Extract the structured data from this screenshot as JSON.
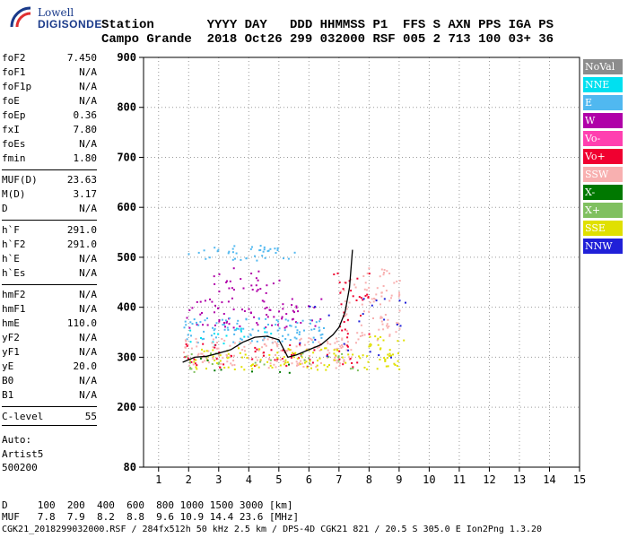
{
  "logo": {
    "line1": "Lowell",
    "line2": "DIGISONDE"
  },
  "header": {
    "row1": "Station       YYYY DAY   DDD HHMMSS P1  FFS S AXN PPS IGA PS",
    "row2": "Campo Grande  2018 Oct26 299 032000 RSF 005 2 713 100 03+ 36"
  },
  "params": [
    {
      "name": "foF2",
      "value": "7.450"
    },
    {
      "name": "foF1",
      "value": "N/A"
    },
    {
      "name": "foF1p",
      "value": "N/A"
    },
    {
      "name": "foE",
      "value": "N/A"
    },
    {
      "name": "foEp",
      "value": "0.36"
    },
    {
      "name": "fxI",
      "value": "7.80"
    },
    {
      "name": "foEs",
      "value": "N/A"
    },
    {
      "name": "fmin",
      "value": "1.80"
    },
    {
      "name": "MUF(D)",
      "value": "23.63"
    },
    {
      "name": "M(D)",
      "value": "3.17"
    },
    {
      "name": "D",
      "value": "N/A"
    },
    {
      "name": "h`F",
      "value": "291.0"
    },
    {
      "name": "h`F2",
      "value": "291.0"
    },
    {
      "name": "h`E",
      "value": "N/A"
    },
    {
      "name": "h`Es",
      "value": "N/A"
    },
    {
      "name": "hmF2",
      "value": "N/A"
    },
    {
      "name": "hmF1",
      "value": "N/A"
    },
    {
      "name": "hmE",
      "value": "110.0"
    },
    {
      "name": "yF2",
      "value": "N/A"
    },
    {
      "name": "yF1",
      "value": "N/A"
    },
    {
      "name": "yE",
      "value": "20.0"
    },
    {
      "name": "B0",
      "value": "N/A"
    },
    {
      "name": "B1",
      "value": "N/A"
    },
    {
      "name": "C-level",
      "value": "55"
    }
  ],
  "auto": {
    "line1": "Auto:",
    "line2": "Artist5",
    "line3": "500200"
  },
  "legend": [
    {
      "label": "NoVal",
      "color": "#8c8c8c"
    },
    {
      "label": "NNE",
      "color": "#00e0f0"
    },
    {
      "label": "E",
      "color": "#50b8f0"
    },
    {
      "label": "W",
      "color": "#b000a8"
    },
    {
      "label": "Vo-",
      "color": "#ff40b0"
    },
    {
      "label": "Vo+",
      "color": "#f00030"
    },
    {
      "label": "SSW",
      "color": "#f8b0b0"
    },
    {
      "label": "X-",
      "color": "#007800"
    },
    {
      "label": "X+",
      "color": "#80c060"
    },
    {
      "label": "SSE",
      "color": "#e0e000"
    },
    {
      "label": "NNW",
      "color": "#2020d8"
    }
  ],
  "footer": {
    "d_row": "D     100  200  400  600  800 1000 1500 3000 [km]",
    "muf_row": "MUF   7.8  7.9  8.2  8.8  9.6 10.9 14.4 23.6 [MHz]",
    "file_row": "CGK21_2018299032000.RSF / 284fx512h 50 kHz 2.5 km / DPS-4D CGK21 821 / 20.5 S 305.0 E Ion2Png 1.3.20"
  },
  "chart_data": {
    "type": "scatter",
    "xlim": [
      0.5,
      15
    ],
    "ylim": [
      80,
      900
    ],
    "x_ticks": [
      1,
      2,
      3,
      4,
      5,
      6,
      7,
      8,
      9,
      10,
      11,
      12,
      13,
      14,
      15
    ],
    "y_ticks": [
      80,
      200,
      300,
      400,
      500,
      600,
      700,
      800,
      900
    ],
    "grid": true,
    "trace": {
      "name": "",
      "x": [
        1.8,
        2.2,
        2.6,
        3.0,
        3.4,
        3.8,
        4.2,
        4.6,
        5.0,
        5.3,
        5.6,
        6.0,
        6.4,
        6.8,
        7.0,
        7.2,
        7.35,
        7.45
      ],
      "y": [
        290,
        300,
        302,
        308,
        315,
        330,
        340,
        342,
        335,
        300,
        305,
        315,
        325,
        345,
        360,
        390,
        440,
        515
      ]
    },
    "clusters": [
      {
        "color": "#50b8f0",
        "x": [
          1.9,
          5.6
        ],
        "y": [
          495,
          525
        ],
        "density": 1.2
      },
      {
        "color": "#b000a8",
        "x": [
          2.8,
          5.0
        ],
        "y": [
          430,
          480
        ],
        "density": 0.8
      },
      {
        "color": "#b000a8",
        "x": [
          1.8,
          6.5
        ],
        "y": [
          360,
          420
        ],
        "density": 0.9
      },
      {
        "color": "#50b8f0",
        "x": [
          1.8,
          6.5
        ],
        "y": [
          330,
          380
        ],
        "density": 1.4
      },
      {
        "color": "#00e0f0",
        "x": [
          1.8,
          5.0
        ],
        "y": [
          325,
          360
        ],
        "density": 0.5
      },
      {
        "color": "#f8b0b0",
        "x": [
          1.8,
          7.5
        ],
        "y": [
          280,
          340
        ],
        "density": 1.6
      },
      {
        "color": "#f00030",
        "x": [
          1.8,
          7.6
        ],
        "y": [
          280,
          330
        ],
        "density": 0.6
      },
      {
        "color": "#e0e000",
        "x": [
          2.0,
          9.2
        ],
        "y": [
          275,
          320
        ],
        "density": 1.2
      },
      {
        "color": "#80c060",
        "x": [
          1.8,
          8.0
        ],
        "y": [
          270,
          310
        ],
        "density": 0.4
      },
      {
        "color": "#007800",
        "x": [
          1.8,
          6.0
        ],
        "y": [
          270,
          300
        ],
        "density": 0.2
      },
      {
        "color": "#f8b0b0",
        "x": [
          7.0,
          9.0
        ],
        "y": [
          330,
          480
        ],
        "density": 0.9
      },
      {
        "color": "#f00030",
        "x": [
          6.8,
          8.0
        ],
        "y": [
          330,
          470
        ],
        "density": 0.6
      },
      {
        "color": "#e0e000",
        "x": [
          7.8,
          9.3
        ],
        "y": [
          320,
          345
        ],
        "density": 1.0
      },
      {
        "color": "#2020d8",
        "x": [
          5.5,
          9.4
        ],
        "y": [
          300,
          420
        ],
        "density": 0.15
      }
    ]
  }
}
